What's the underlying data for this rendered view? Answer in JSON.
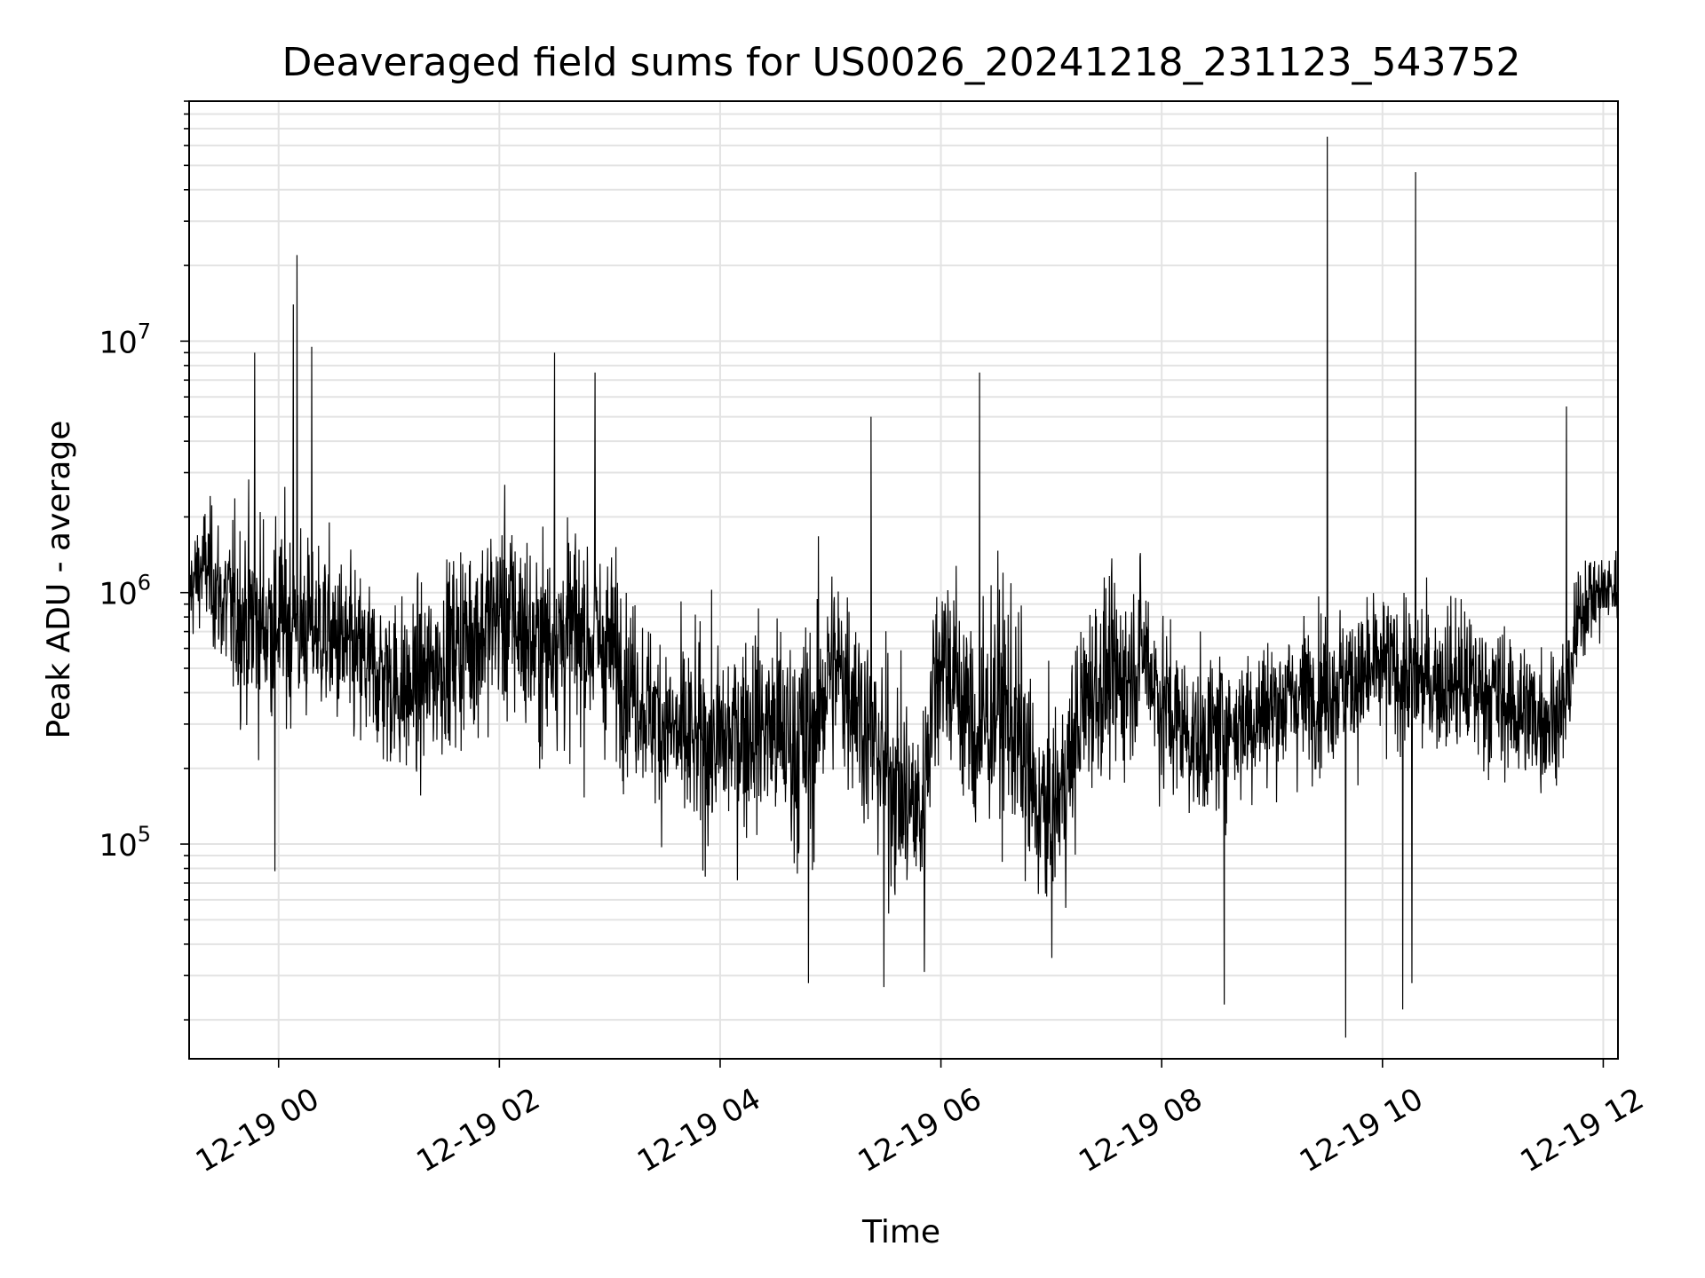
{
  "chart_data": {
    "type": "line",
    "title": "Deaveraged field sums for US0026_20241218_231123_543752",
    "xlabel": "Time",
    "ylabel": "Peak ADU - average",
    "yscale": "log",
    "ylim": [
      14000,
      90000000
    ],
    "xlim": [
      "2024-12-18 23:11:23",
      "2024-12-19 12:08:00"
    ],
    "grid": true,
    "x_ticks": [
      {
        "value": "2024-12-19 00:00",
        "label": "12-19 00"
      },
      {
        "value": "2024-12-19 02:00",
        "label": "12-19 02"
      },
      {
        "value": "2024-12-19 04:00",
        "label": "12-19 04"
      },
      {
        "value": "2024-12-19 06:00",
        "label": "12-19 06"
      },
      {
        "value": "2024-12-19 08:00",
        "label": "12-19 08"
      },
      {
        "value": "2024-12-19 10:00",
        "label": "12-19 10"
      },
      {
        "value": "2024-12-19 12:00",
        "label": "12-19 12"
      }
    ],
    "y_ticks": [
      {
        "value": 100000,
        "base": "10",
        "exp": "5"
      },
      {
        "value": 1000000,
        "base": "10",
        "exp": "6"
      },
      {
        "value": 10000000,
        "base": "10",
        "exp": "7"
      }
    ],
    "series": [
      {
        "color": "#000000",
        "x": [
          "2024-12-18 23:11",
          "2024-12-18 23:20",
          "2024-12-18 23:30",
          "2024-12-18 23:40",
          "2024-12-18 23:50",
          "2024-12-19 00:00",
          "2024-12-19 00:10",
          "2024-12-19 00:20",
          "2024-12-19 00:30",
          "2024-12-19 00:40",
          "2024-12-19 00:50",
          "2024-12-19 01:00",
          "2024-12-19 01:10",
          "2024-12-19 01:20",
          "2024-12-19 01:30",
          "2024-12-19 01:40",
          "2024-12-19 01:50",
          "2024-12-19 02:00",
          "2024-12-19 02:10",
          "2024-12-19 02:20",
          "2024-12-19 02:30",
          "2024-12-19 02:40",
          "2024-12-19 02:50",
          "2024-12-19 03:00",
          "2024-12-19 03:10",
          "2024-12-19 03:20",
          "2024-12-19 03:30",
          "2024-12-19 03:40",
          "2024-12-19 03:50",
          "2024-12-19 04:00",
          "2024-12-19 04:10",
          "2024-12-19 04:20",
          "2024-12-19 04:30",
          "2024-12-19 04:40",
          "2024-12-19 04:50",
          "2024-12-19 05:00",
          "2024-12-19 05:10",
          "2024-12-19 05:20",
          "2024-12-19 05:30",
          "2024-12-19 05:40",
          "2024-12-19 05:50",
          "2024-12-19 06:00",
          "2024-12-19 06:10",
          "2024-12-19 06:20",
          "2024-12-19 06:30",
          "2024-12-19 06:40",
          "2024-12-19 06:50",
          "2024-12-19 07:00",
          "2024-12-19 07:10",
          "2024-12-19 07:20",
          "2024-12-19 07:30",
          "2024-12-19 07:40",
          "2024-12-19 07:50",
          "2024-12-19 08:00",
          "2024-12-19 08:10",
          "2024-12-19 08:20",
          "2024-12-19 08:30",
          "2024-12-19 08:40",
          "2024-12-19 08:50",
          "2024-12-19 09:00",
          "2024-12-19 09:10",
          "2024-12-19 09:20",
          "2024-12-19 09:30",
          "2024-12-19 09:40",
          "2024-12-19 09:50",
          "2024-12-19 10:00",
          "2024-12-19 10:10",
          "2024-12-19 10:20",
          "2024-12-19 10:30",
          "2024-12-19 10:40",
          "2024-12-19 10:50",
          "2024-12-19 11:00",
          "2024-12-19 11:10",
          "2024-12-19 11:20",
          "2024-12-19 11:30",
          "2024-12-19 11:40",
          "2024-12-19 11:50",
          "2024-12-19 12:00",
          "2024-12-19 12:08"
        ],
        "center": [
          1000000,
          1300000,
          900000,
          800000,
          750000,
          800000,
          700000,
          750000,
          650000,
          550000,
          500000,
          450000,
          400000,
          450000,
          550000,
          650000,
          700000,
          850000,
          750000,
          600000,
          650000,
          700000,
          650000,
          600000,
          450000,
          350000,
          300000,
          250000,
          250000,
          250000,
          280000,
          300000,
          280000,
          250000,
          260000,
          500000,
          450000,
          280000,
          200000,
          150000,
          130000,
          600000,
          400000,
          250000,
          380000,
          300000,
          150000,
          120000,
          200000,
          400000,
          450000,
          450000,
          600000,
          350000,
          300000,
          250000,
          280000,
          300000,
          320000,
          350000,
          380000,
          400000,
          420000,
          450000,
          450000,
          500000,
          480000,
          450000,
          450000,
          450000,
          420000,
          400000,
          350000,
          330000,
          320000,
          350000,
          950000,
          1000000,
          1050000
        ],
        "spread": [
          0.25,
          0.3,
          0.4,
          0.5,
          0.55,
          0.5,
          0.5,
          0.45,
          0.45,
          0.45,
          0.45,
          0.45,
          0.45,
          0.45,
          0.45,
          0.5,
          0.5,
          0.5,
          0.55,
          0.5,
          0.55,
          0.55,
          0.5,
          0.5,
          0.45,
          0.4,
          0.5,
          0.5,
          0.5,
          0.5,
          0.5,
          0.5,
          0.55,
          0.6,
          0.6,
          0.55,
          0.55,
          0.5,
          0.55,
          0.55,
          0.5,
          0.55,
          0.55,
          0.6,
          0.6,
          0.6,
          0.55,
          0.5,
          0.5,
          0.5,
          0.5,
          0.45,
          0.45,
          0.45,
          0.4,
          0.4,
          0.4,
          0.4,
          0.38,
          0.38,
          0.38,
          0.38,
          0.38,
          0.38,
          0.38,
          0.38,
          0.38,
          0.38,
          0.38,
          0.38,
          0.38,
          0.38,
          0.38,
          0.38,
          0.35,
          0.3,
          0.25,
          0.22,
          0.2
        ],
        "extremes": [
          {
            "x": "2024-12-19 00:10",
            "y": 22000000
          },
          {
            "x": "2024-12-19 00:08",
            "y": 14000000
          },
          {
            "x": "2024-12-19 00:18",
            "y": 9500000
          },
          {
            "x": "2024-12-18 23:47",
            "y": 9000000
          },
          {
            "x": "2024-12-19 02:30",
            "y": 9000000
          },
          {
            "x": "2024-12-19 02:52",
            "y": 7500000
          },
          {
            "x": "2024-12-19 05:22",
            "y": 5000000
          },
          {
            "x": "2024-12-19 06:21",
            "y": 7500000
          },
          {
            "x": "2024-12-19 09:30",
            "y": 65000000
          },
          {
            "x": "2024-12-19 10:18",
            "y": 47000000
          },
          {
            "x": "2024-12-18 23:58",
            "y": 78000
          },
          {
            "x": "2024-12-19 04:48",
            "y": 28000
          },
          {
            "x": "2024-12-19 05:29",
            "y": 27000
          },
          {
            "x": "2024-12-19 05:51",
            "y": 31000
          },
          {
            "x": "2024-12-19 08:34",
            "y": 23000
          },
          {
            "x": "2024-12-19 09:40",
            "y": 17000
          },
          {
            "x": "2024-12-19 10:11",
            "y": 22000
          },
          {
            "x": "2024-12-19 10:16",
            "y": 28000
          },
          {
            "x": "2024-12-19 11:40",
            "y": 5500000
          }
        ]
      }
    ]
  }
}
